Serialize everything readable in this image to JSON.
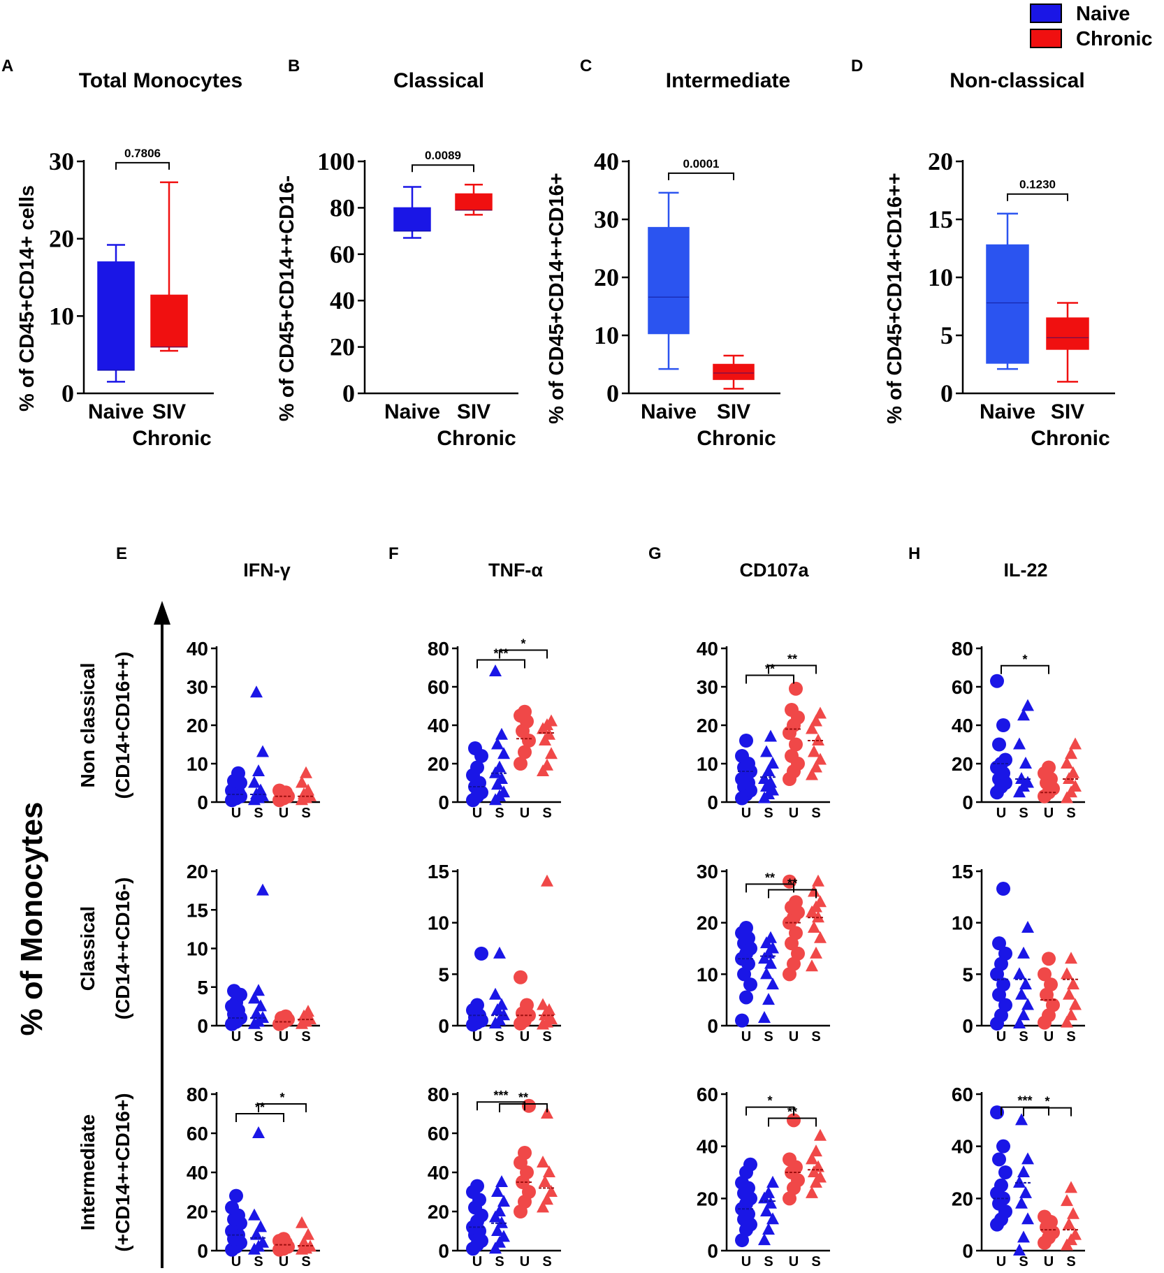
{
  "colors": {
    "naive": "#1a16e6",
    "chronic": "#f01010",
    "chronic_dot": "#f04848",
    "naive_box_light": "#2b54f0",
    "median_naive": "#1010a0",
    "median_chronic": "#a01010"
  },
  "legend": [
    {
      "label": "Naive",
      "color": "#1a16e6"
    },
    {
      "label": "Chronic",
      "color": "#f01010"
    }
  ],
  "chart_data": [
    {
      "type": "box",
      "panel_letter": "A",
      "title": "Total  Monocytes",
      "ylabel": "% of CD45+CD14+ cells",
      "ylim": [
        0,
        30
      ],
      "yticks": [
        "0",
        "10",
        "20",
        "30"
      ],
      "categories": [
        "Naive",
        "SIV Chronic"
      ],
      "x_label_lines": [
        [
          "Naive"
        ],
        [
          "SIV",
          "Chronic"
        ]
      ],
      "boxes": [
        {
          "min": 1.5,
          "q1": 3,
          "median": 3,
          "q3": 17,
          "max": 19.2,
          "color": "#1a16e6"
        },
        {
          "min": 5.5,
          "q1": 6,
          "median": 6,
          "q3": 12.7,
          "max": 27.3,
          "color": "#f01010"
        }
      ],
      "pvalue": "0.7806"
    },
    {
      "type": "box",
      "panel_letter": "B",
      "title": "Classical",
      "ylabel": "% of CD45+CD14++CD16-",
      "ylim": [
        0,
        100
      ],
      "yticks": [
        "0",
        "20",
        "40",
        "60",
        "80",
        "100"
      ],
      "categories": [
        "Naive",
        "SIV Chronic"
      ],
      "x_label_lines": [
        [
          "Naive"
        ],
        [
          "SIV",
          "Chronic"
        ]
      ],
      "boxes": [
        {
          "min": 67,
          "q1": 70,
          "median": 70,
          "q3": 80,
          "max": 89,
          "color": "#1a16e6"
        },
        {
          "min": 77,
          "q1": 79,
          "median": 79,
          "q3": 86,
          "max": 90,
          "color": "#f01010"
        }
      ],
      "pvalue": "0.0089"
    },
    {
      "type": "box",
      "panel_letter": "C",
      "title": "Intermediate",
      "ylabel": "% of CD45+CD14++CD16+",
      "ylim": [
        0,
        40
      ],
      "yticks": [
        "0",
        "10",
        "20",
        "30",
        "40"
      ],
      "categories": [
        "Naive",
        "SIV Chronic"
      ],
      "x_label_lines": [
        [
          "Naive"
        ],
        [
          "SIV",
          "Chronic"
        ]
      ],
      "boxes": [
        {
          "min": 4.2,
          "q1": 10.3,
          "median": 16.6,
          "q3": 28.6,
          "max": 34.6,
          "color": "#2b54f0"
        },
        {
          "min": 0.8,
          "q1": 2.4,
          "median": 3.5,
          "q3": 5,
          "max": 6.5,
          "color": "#f01010"
        }
      ],
      "pvalue": "0.0001"
    },
    {
      "type": "box",
      "panel_letter": "D",
      "title": "Non-classical",
      "ylabel": "% of CD45+CD14+CD16++",
      "ylim": [
        0,
        20
      ],
      "yticks": [
        "0",
        "5",
        "10",
        "15",
        "20"
      ],
      "categories": [
        "Naive",
        "SIV Chronic"
      ],
      "x_label_lines": [
        [
          "Naive"
        ],
        [
          "SIV",
          "Chronic"
        ]
      ],
      "boxes": [
        {
          "min": 2.1,
          "q1": 2.6,
          "median": 7.8,
          "q3": 12.8,
          "max": 15.5,
          "color": "#2b54f0"
        },
        {
          "min": 1.0,
          "q1": 3.8,
          "median": 4.8,
          "q3": 6.5,
          "max": 7.8,
          "color": "#f01010"
        }
      ],
      "pvalue": "0.1230"
    }
  ],
  "scatter": {
    "columns": [
      {
        "letter": "E",
        "title": "IFN-γ"
      },
      {
        "letter": "F",
        "title": "TNF-α"
      },
      {
        "letter": "G",
        "title": "CD107a"
      },
      {
        "letter": "H",
        "title": "IL-22"
      }
    ],
    "rows": [
      {
        "label1": "Non classical",
        "label2": "(CD14+CD16++)"
      },
      {
        "label1": "Classical",
        "label2": "(CD14++CD16-)"
      },
      {
        "label1": "Intermediate",
        "label2": "(+CD14++CD16+)"
      }
    ],
    "y_axis_title": "% of  Monocytes",
    "xtick_labels": [
      "U",
      "S",
      "U",
      "S"
    ],
    "groups": [
      "Naive U",
      "Naive S",
      "Chronic U",
      "Chronic S"
    ],
    "panels": [
      {
        "row": 0,
        "col": 0,
        "ymax": 40,
        "yticks": [
          "0",
          "10",
          "20",
          "30",
          "40"
        ],
        "values": [
          [
            0.5,
            1,
            1.5,
            2,
            2.5,
            3,
            4,
            5,
            5.5,
            7.5
          ],
          [
            0.5,
            1,
            1.5,
            2,
            3,
            5,
            8,
            13,
            28.5
          ],
          [
            0.5,
            1,
            1.5,
            2,
            2.5,
            3
          ],
          [
            0.5,
            1,
            1.5,
            2,
            3,
            5,
            7.5
          ]
        ],
        "medians": [
          2,
          2,
          1.5,
          1.5
        ],
        "brackets": []
      },
      {
        "row": 0,
        "col": 1,
        "ymax": 80,
        "yticks": [
          "0",
          "20",
          "40",
          "60",
          "80"
        ],
        "values": [
          [
            1,
            3,
            5,
            8,
            10,
            14,
            18,
            24,
            28
          ],
          [
            1,
            3,
            5,
            9,
            12,
            15,
            18,
            25,
            30,
            35,
            68
          ],
          [
            20,
            26,
            32,
            37,
            42,
            45,
            47
          ],
          [
            16,
            19,
            25,
            32,
            35,
            38,
            40,
            42
          ]
        ],
        "medians": [
          8,
          15,
          33,
          36
        ],
        "brackets": [
          {
            "from": 0,
            "to": 2,
            "y": 74,
            "label": "***"
          },
          {
            "from": 1,
            "to": 3,
            "y": 74,
            "label": "*"
          }
        ]
      },
      {
        "row": 0,
        "col": 2,
        "ymax": 40,
        "yticks": [
          "0",
          "10",
          "20",
          "30",
          "40"
        ],
        "values": [
          [
            1,
            2,
            3,
            4,
            5,
            6,
            7,
            8,
            9,
            10,
            12,
            16
          ],
          [
            1,
            2,
            3,
            4,
            5,
            6,
            8,
            10,
            13,
            17
          ],
          [
            6,
            8,
            10,
            12,
            15,
            18,
            20,
            22,
            24,
            29.5
          ],
          [
            7,
            9,
            11,
            13,
            16,
            19,
            21,
            23
          ]
        ],
        "medians": [
          8,
          6.5,
          19,
          16
        ],
        "brackets": [
          {
            "from": 0,
            "to": 2,
            "y": 33,
            "label": "**"
          },
          {
            "from": 1,
            "to": 3,
            "y": 33,
            "label": "**"
          }
        ]
      },
      {
        "row": 0,
        "col": 3,
        "ymax": 80,
        "yticks": [
          "0",
          "20",
          "40",
          "60",
          "80"
        ],
        "values": [
          [
            5,
            8,
            10,
            12,
            15,
            18,
            20,
            22,
            30,
            40,
            63
          ],
          [
            5,
            8,
            10,
            12,
            20,
            30,
            45,
            50
          ],
          [
            3,
            5,
            7,
            10,
            12,
            15,
            18
          ],
          [
            2,
            5,
            8,
            12,
            15,
            20,
            25,
            30
          ]
        ],
        "medians": [
          20,
          12,
          5,
          12
        ],
        "brackets": [
          {
            "from": 0,
            "to": 2,
            "y": 71,
            "label": "*"
          }
        ]
      },
      {
        "row": 1,
        "col": 0,
        "ymax": 20,
        "yticks": [
          "0",
          "5",
          "10",
          "15",
          "20"
        ],
        "values": [
          [
            0.2,
            0.5,
            1,
            1.5,
            2,
            2.5,
            3,
            4,
            4.5
          ],
          [
            0.2,
            0.5,
            1,
            1.5,
            2.5,
            3.5,
            4.5,
            17.5
          ],
          [
            0.2,
            0.5,
            0.8,
            1,
            1.2
          ],
          [
            0.2,
            0.5,
            0.8,
            1.2,
            1.8
          ]
        ],
        "medians": [
          1,
          1,
          0.5,
          0.8
        ],
        "brackets": []
      },
      {
        "row": 1,
        "col": 1,
        "ymax": 15,
        "yticks": [
          "0",
          "5",
          "10",
          "15"
        ],
        "values": [
          [
            0.1,
            0.3,
            0.5,
            0.8,
            1,
            1.5,
            2,
            7
          ],
          [
            0.2,
            0.5,
            1,
            1.5,
            2,
            3,
            7
          ],
          [
            0.2,
            0.5,
            1,
            1.2,
            2,
            4.7
          ],
          [
            0.1,
            0.3,
            0.6,
            1,
            1.5,
            2,
            14
          ]
        ],
        "medians": [
          1,
          1,
          1,
          1
        ],
        "brackets": []
      },
      {
        "row": 1,
        "col": 2,
        "ymax": 30,
        "yticks": [
          "0",
          "10",
          "20",
          "30"
        ],
        "values": [
          [
            1,
            5.5,
            8,
            10,
            12,
            13,
            14,
            15,
            16,
            17,
            18,
            19
          ],
          [
            1.5,
            5,
            8,
            10,
            12,
            13,
            14,
            15,
            16,
            17
          ],
          [
            10,
            12,
            14,
            16,
            18,
            20,
            21,
            22,
            23,
            24,
            28
          ],
          [
            11.5,
            14,
            17,
            19,
            21,
            22,
            23,
            24,
            26,
            28
          ]
        ],
        "medians": [
          13,
          13.5,
          20,
          21
        ],
        "brackets": [
          {
            "from": 0,
            "to": 2,
            "y": 27.5,
            "label": "**"
          },
          {
            "from": 1,
            "to": 3,
            "y": 24.5,
            "label": "**"
          }
        ]
      },
      {
        "row": 1,
        "col": 3,
        "ymax": 15,
        "yticks": [
          "0",
          "5",
          "10",
          "15"
        ],
        "values": [
          [
            0.2,
            1,
            2,
            3,
            4,
            5,
            6,
            7,
            8,
            13.3
          ],
          [
            0.2,
            1,
            2,
            3,
            4,
            5,
            7,
            9.5
          ],
          [
            0.3,
            1,
            2,
            3,
            4,
            5,
            6.5
          ],
          [
            0.3,
            1,
            2,
            3,
            4,
            5,
            6.5
          ]
        ],
        "medians": [
          4.5,
          4.5,
          2.5,
          4.5
        ],
        "brackets": []
      },
      {
        "row": 2,
        "col": 0,
        "ymax": 80,
        "yticks": [
          "0",
          "20",
          "40",
          "60",
          "80"
        ],
        "values": [
          [
            0.5,
            2,
            4,
            6,
            8,
            10,
            12,
            14,
            16,
            18,
            22,
            28
          ],
          [
            0.5,
            2,
            4,
            8,
            12,
            18,
            60
          ],
          [
            0.5,
            1,
            2,
            3,
            4,
            5,
            6
          ],
          [
            0.5,
            1,
            2,
            4,
            8,
            14
          ]
        ],
        "medians": [
          8,
          6.5,
          3,
          2.5
        ],
        "brackets": [
          {
            "from": 0,
            "to": 2,
            "y": 70,
            "label": "**"
          },
          {
            "from": 1,
            "to": 3,
            "y": 70,
            "label": "*"
          }
        ]
      },
      {
        "row": 2,
        "col": 1,
        "ymax": 80,
        "yticks": [
          "0",
          "20",
          "40",
          "60",
          "80"
        ],
        "values": [
          [
            1,
            3,
            5,
            8,
            10,
            12,
            15,
            18,
            22,
            26,
            30,
            33
          ],
          [
            1,
            4,
            7,
            10,
            14,
            17,
            20,
            25,
            30,
            35
          ],
          [
            20,
            25,
            30,
            35,
            40,
            45,
            50,
            74
          ],
          [
            22,
            26,
            30,
            35,
            40,
            45,
            70
          ]
        ],
        "medians": [
          12,
          14,
          35,
          32
        ],
        "brackets": [
          {
            "from": 0,
            "to": 2,
            "y": 76,
            "label": "***"
          },
          {
            "from": 1,
            "to": 3,
            "y": 70,
            "label": "**"
          }
        ]
      },
      {
        "row": 2,
        "col": 2,
        "ymax": 60,
        "yticks": [
          "0",
          "20",
          "40",
          "60"
        ],
        "values": [
          [
            4,
            8,
            10,
            12,
            14,
            16,
            18,
            20,
            22,
            24,
            26,
            30,
            33
          ],
          [
            4,
            8,
            12,
            15,
            18,
            20,
            22,
            26
          ],
          [
            20,
            24,
            27,
            30,
            32,
            35,
            50
          ],
          [
            22,
            26,
            28,
            30,
            32,
            35,
            38,
            44
          ]
        ],
        "medians": [
          16,
          19,
          30,
          31
        ],
        "brackets": [
          {
            "from": 0,
            "to": 2,
            "y": 55,
            "label": "*"
          },
          {
            "from": 1,
            "to": 3,
            "y": 47,
            "label": "**"
          }
        ]
      },
      {
        "row": 2,
        "col": 3,
        "ymax": 60,
        "yticks": [
          "0",
          "20",
          "40",
          "60"
        ],
        "values": [
          [
            10,
            12,
            15,
            18,
            20,
            22,
            25,
            30,
            35,
            40,
            53
          ],
          [
            0,
            5,
            12,
            18,
            22,
            26,
            30,
            35,
            50
          ],
          [
            3,
            5,
            7,
            9,
            11,
            13
          ],
          [
            2,
            4,
            6,
            10,
            14,
            19,
            24
          ]
        ],
        "medians": [
          20,
          26,
          8,
          8
        ],
        "brackets": [
          {
            "from": 0,
            "to": 2,
            "y": 55,
            "label": "***"
          },
          {
            "from": 1,
            "to": 3,
            "y": 51,
            "label": "*"
          }
        ]
      }
    ]
  }
}
